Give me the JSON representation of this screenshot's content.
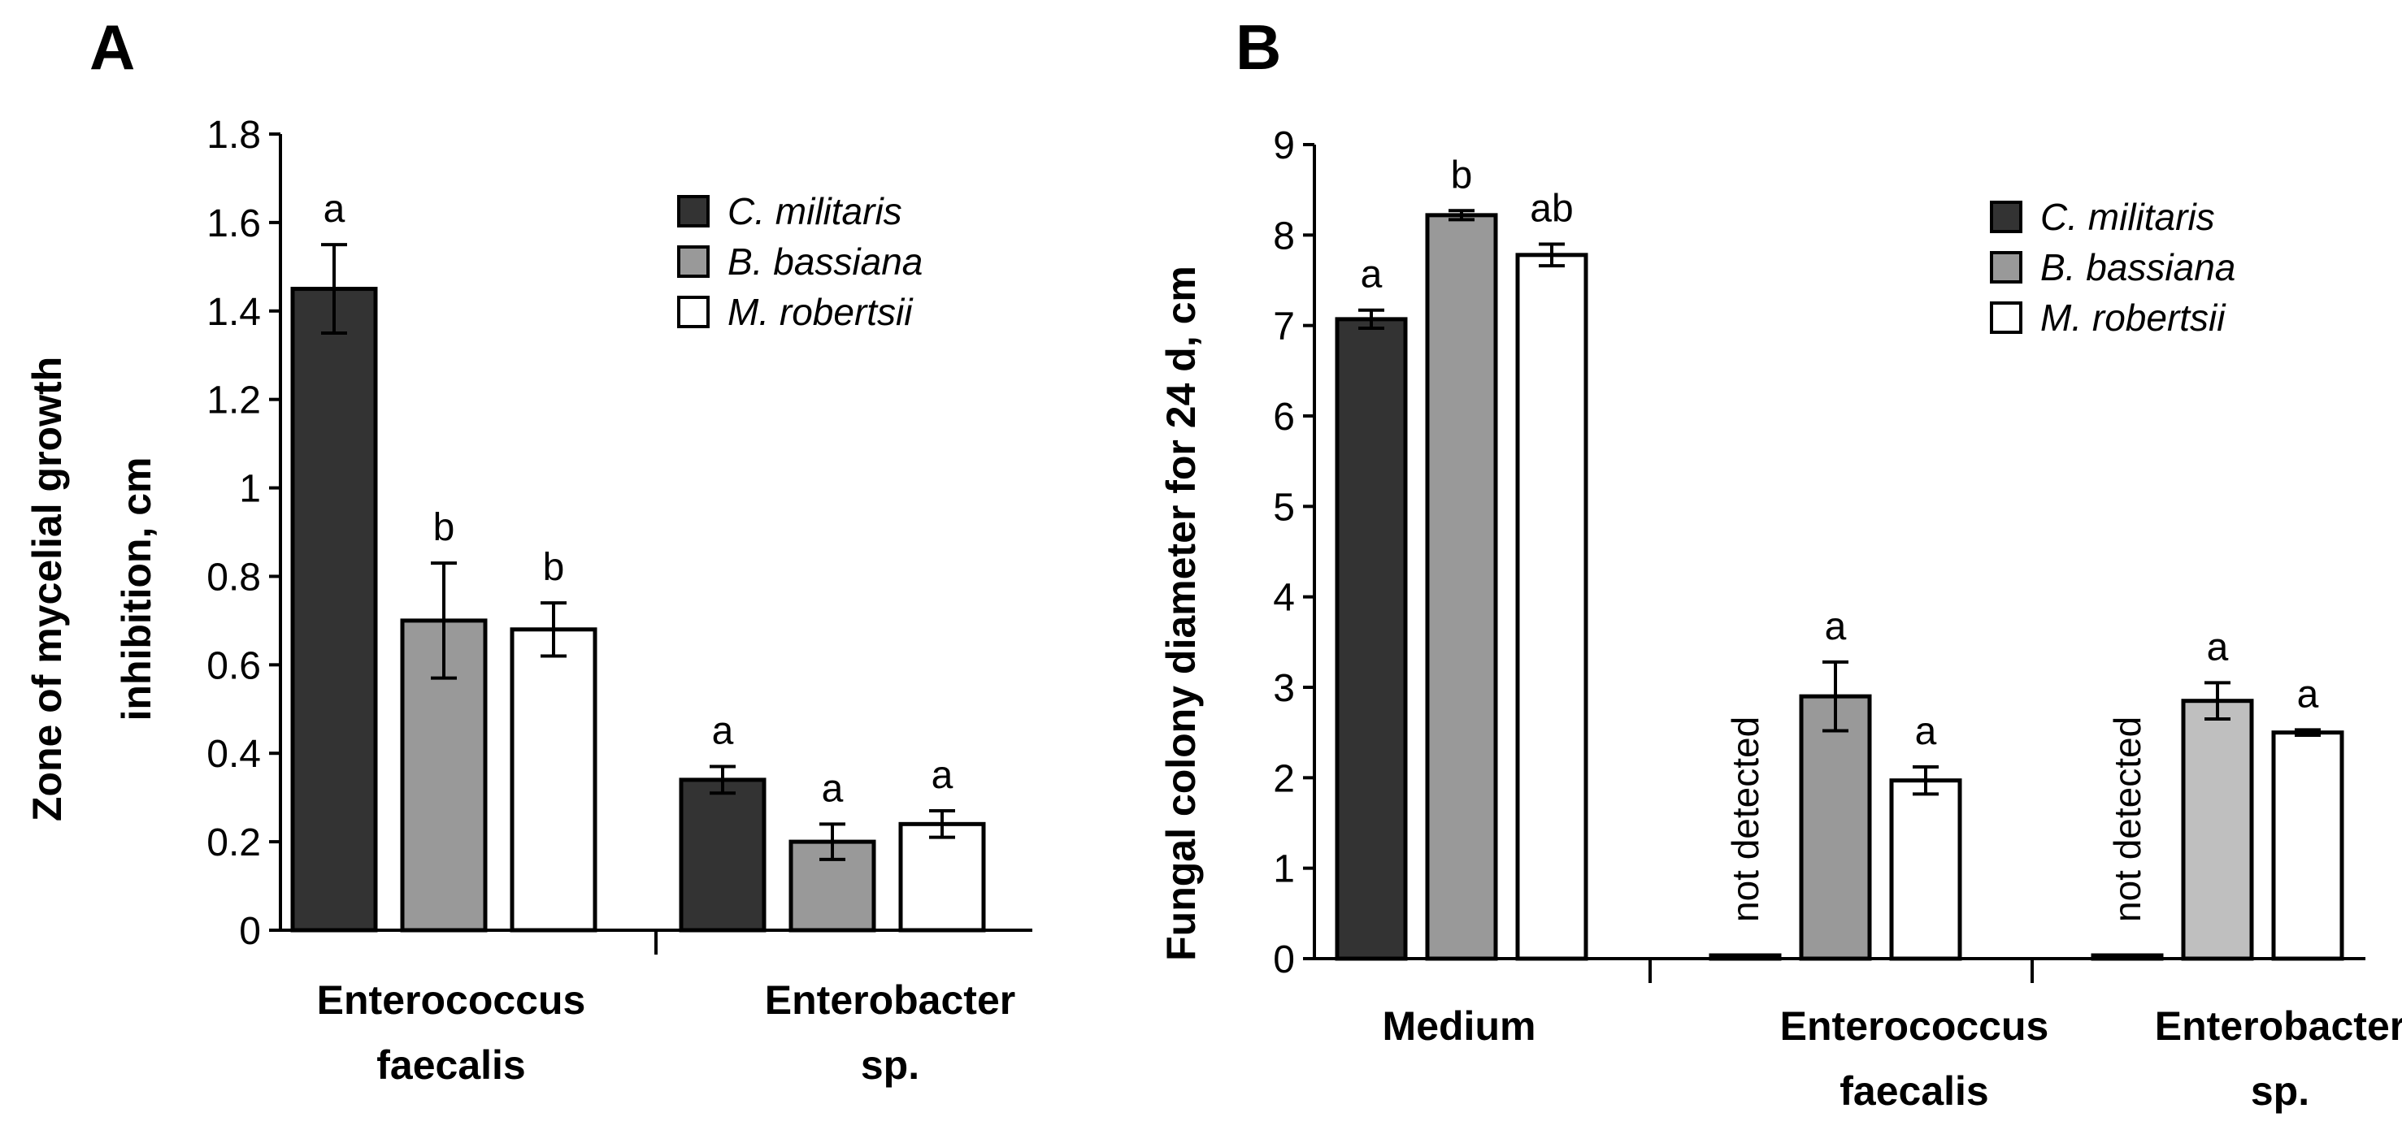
{
  "colors": {
    "c_militaris": "#333333",
    "b_bassiana": "#999999",
    "b_bassiana_light": "#bfbfbf",
    "m_robertsii": "#ffffff",
    "axis": "#000000"
  },
  "chart_data": [
    {
      "panel": "A",
      "type": "bar",
      "ylabel_line1": "Zone of mycelial growth",
      "ylabel_line2": "inhibition, cm",
      "ylim": [
        0,
        1.8
      ],
      "yticks": [
        "0",
        "0.2",
        "0.4",
        "0.6",
        "0.8",
        "1",
        "1.2",
        "1.4",
        "1.6",
        "1.8"
      ],
      "legend": [
        "C. militaris",
        "B. bassiana",
        "M. robertsii"
      ],
      "legend_position": "top-right",
      "categories": [
        {
          "line1": "Enterococcus",
          "line2": "faecalis"
        },
        {
          "line1": "Enterobacter",
          "line2": "sp."
        }
      ],
      "series": [
        {
          "name": "C. militaris",
          "values": [
            1.45,
            0.34
          ],
          "errors": [
            0.1,
            0.03
          ],
          "letters": [
            "a",
            "a"
          ]
        },
        {
          "name": "B. bassiana",
          "values": [
            0.7,
            0.2
          ],
          "errors": [
            0.13,
            0.04
          ],
          "letters": [
            "b",
            "a"
          ]
        },
        {
          "name": "M. robertsii",
          "values": [
            0.68,
            0.24
          ],
          "errors": [
            0.06,
            0.03
          ],
          "letters": [
            "b",
            "a"
          ]
        }
      ]
    },
    {
      "panel": "B",
      "type": "bar",
      "ylabel_line1": "Fungal colony diameter for 24 d, cm",
      "ylim": [
        0,
        9
      ],
      "yticks": [
        "0",
        "1",
        "2",
        "3",
        "4",
        "5",
        "6",
        "7",
        "8",
        "9"
      ],
      "legend": [
        "C. militaris",
        "B. bassiana",
        "M. robertsii"
      ],
      "legend_position": "top-right",
      "not_detected_label": "not detected",
      "categories": [
        {
          "line1": "Medium",
          "line2": ""
        },
        {
          "line1": "Enterococcus",
          "line2": "faecalis"
        },
        {
          "line1": "Enterobacter",
          "line2": "sp."
        }
      ],
      "series": [
        {
          "name": "C. militaris",
          "values": [
            7.07,
            0.0,
            0.0
          ],
          "errors": [
            0.1,
            0,
            0
          ],
          "letters": [
            "a",
            "not detected",
            "not detected"
          ]
        },
        {
          "name": "B. bassiana",
          "values": [
            8.22,
            2.9,
            2.85
          ],
          "errors": [
            0.05,
            0.38,
            0.2
          ],
          "letters": [
            "b",
            "a",
            "a"
          ]
        },
        {
          "name": "M. robertsii",
          "values": [
            7.78,
            1.97,
            2.5
          ],
          "errors": [
            0.12,
            0.15,
            0.03
          ],
          "letters": [
            "ab",
            "a",
            "a"
          ]
        }
      ]
    }
  ]
}
